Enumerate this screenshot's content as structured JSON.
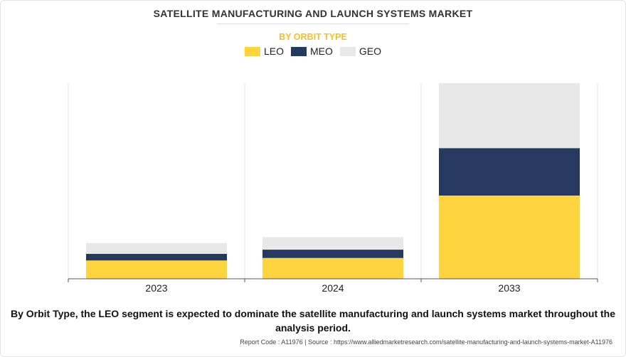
{
  "chart_data": {
    "type": "bar",
    "stacked": true,
    "title": "SATELLITE MANUFACTURING AND LAUNCH SYSTEMS MARKET",
    "subtitle": "BY ORBIT TYPE",
    "categories": [
      "2023",
      "2024",
      "2033"
    ],
    "series": [
      {
        "name": "LEO",
        "color": "#FFD43F",
        "values": [
          22,
          25,
          100
        ]
      },
      {
        "name": "MEO",
        "color": "#253A5E",
        "values": [
          8,
          10,
          57
        ]
      },
      {
        "name": "GEO",
        "color": "#E8E8E8",
        "values": [
          13,
          15,
          78
        ]
      }
    ],
    "ylim": [
      0,
      235
    ],
    "xlabel": "",
    "ylabel": "",
    "legend_position": "top-center",
    "grid": "vertical-separators"
  },
  "colors": {
    "title": "#333333",
    "subtitle": "#F6C026",
    "caption": "#111111"
  },
  "caption": "By Orbit Type, the LEO segment is expected to dominate the satellite manufacturing and launch systems market throughout the analysis period.",
  "source_note": "Report Code : A11976  |  Source : https://www.alliedmarketresearch.com/satellite-manufacturing-and-launch-systems-market-A11976"
}
